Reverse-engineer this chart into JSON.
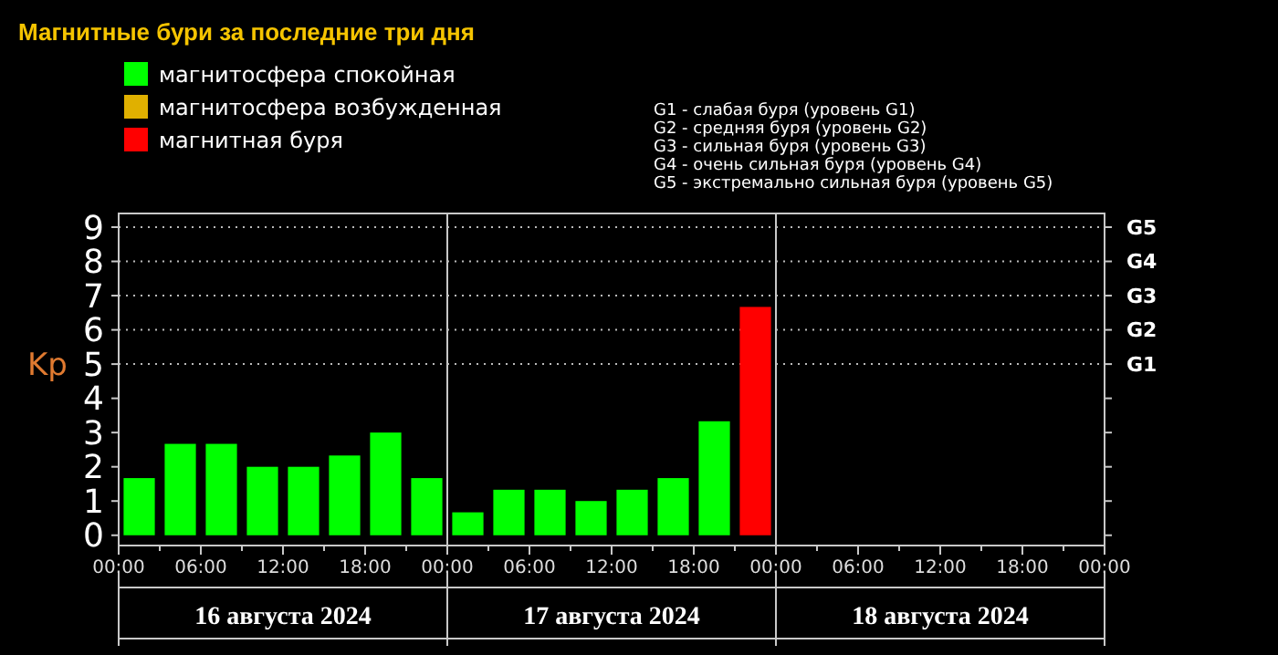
{
  "chart_data": {
    "type": "bar",
    "title": "Магнитные бури за последние три дня",
    "ylabel": "Kp",
    "x": [
      "2024-08-16T01:30",
      "2024-08-16T04:30",
      "2024-08-16T07:30",
      "2024-08-16T10:30",
      "2024-08-16T13:30",
      "2024-08-16T16:30",
      "2024-08-16T19:30",
      "2024-08-16T22:30",
      "2024-08-17T01:30",
      "2024-08-17T04:30",
      "2024-08-17T07:30",
      "2024-08-17T10:30",
      "2024-08-17T13:30",
      "2024-08-17T16:30",
      "2024-08-17T19:30",
      "2024-08-17T22:30"
    ],
    "series": [
      {
        "name": "магнитосфера спокойная",
        "color": "#00ff00",
        "values": [
          1.67,
          2.67,
          2.67,
          2,
          2,
          2.33,
          3,
          1.67,
          0.67,
          1.33,
          1.33,
          1,
          1.33,
          1.67,
          3.33,
          null
        ]
      },
      {
        "name": "магнитосфера возбужденная",
        "color": "#e0b000",
        "values": [
          null,
          null,
          null,
          null,
          null,
          null,
          null,
          null,
          null,
          null,
          null,
          null,
          null,
          null,
          null,
          null
        ]
      },
      {
        "name": "магнитная буря",
        "color": "#ff0000",
        "values": [
          null,
          null,
          null,
          null,
          null,
          null,
          null,
          null,
          null,
          null,
          null,
          null,
          null,
          null,
          null,
          6.67
        ]
      }
    ],
    "xlim": [
      "2024-08-16T00:00",
      "2024-08-19T00:00"
    ],
    "xticks": [
      {
        "value": "2024-08-16T00:00",
        "label": "00:00"
      },
      {
        "value": "2024-08-16T03:00",
        "label": null
      },
      {
        "value": "2024-08-16T06:00",
        "label": "06:00"
      },
      {
        "value": "2024-08-16T09:00",
        "label": null
      },
      {
        "value": "2024-08-16T12:00",
        "label": "12:00"
      },
      {
        "value": "2024-08-16T15:00",
        "label": null
      },
      {
        "value": "2024-08-16T18:00",
        "label": "18:00"
      },
      {
        "value": "2024-08-16T21:00",
        "label": null
      },
      {
        "value": "2024-08-17T00:00",
        "label": "00:00"
      },
      {
        "value": "2024-08-17T03:00",
        "label": null
      },
      {
        "value": "2024-08-17T06:00",
        "label": "06:00"
      },
      {
        "value": "2024-08-17T09:00",
        "label": null
      },
      {
        "value": "2024-08-17T12:00",
        "label": "12:00"
      },
      {
        "value": "2024-08-17T15:00",
        "label": null
      },
      {
        "value": "2024-08-17T18:00",
        "label": "18:00"
      },
      {
        "value": "2024-08-17T21:00",
        "label": null
      },
      {
        "value": "2024-08-18T00:00",
        "label": "00:00"
      },
      {
        "value": "2024-08-18T03:00",
        "label": null
      },
      {
        "value": "2024-08-18T06:00",
        "label": "06:00"
      },
      {
        "value": "2024-08-18T09:00",
        "label": null
      },
      {
        "value": "2024-08-18T12:00",
        "label": "12:00"
      },
      {
        "value": "2024-08-18T15:00",
        "label": null
      },
      {
        "value": "2024-08-18T18:00",
        "label": "18:00"
      },
      {
        "value": "2024-08-18T21:00",
        "label": null
      },
      {
        "value": "2024-08-19T00:00",
        "label": "00:00"
      }
    ],
    "ylim": [
      -0.3,
      9.4
    ],
    "yticks": [
      0,
      1,
      2,
      3,
      4,
      5,
      6,
      7,
      8,
      9
    ],
    "legend": "top left",
    "ref_lines": [
      {
        "axis": "x",
        "value": "2024-08-17T00:00",
        "color": "#c8c8c8"
      },
      {
        "axis": "x",
        "value": "2024-08-18T00:00",
        "color": "#c8c8c8"
      },
      {
        "axis": "y",
        "value": 5,
        "label": "G1",
        "color": "#bbbbbb",
        "line_style": "dotted"
      },
      {
        "axis": "y",
        "value": 6,
        "label": "G2",
        "color": "#bbbbbb",
        "line_style": "dotted"
      },
      {
        "axis": "y",
        "value": 7,
        "label": "G3",
        "color": "#bbbbbb",
        "line_style": "dotted"
      },
      {
        "axis": "y",
        "value": 8,
        "label": "G4",
        "color": "#bbbbbb",
        "line_style": "dotted"
      },
      {
        "axis": "y",
        "value": 9,
        "label": "G5",
        "color": "#bbbbbb",
        "line_style": "dotted"
      }
    ],
    "annotations": [
      "G1 - слабая буря (уровень G1)",
      "G2 - средняя буря (уровень G2)",
      "G3 - сильная буря (уровень G3)",
      "G4 - очень сильная буря (уровень G4)",
      "G5 - экстремально сильная буря (уровень G5)",
      "16 августа 2024",
      "17 августа 2024",
      "18 августа 2024"
    ]
  }
}
